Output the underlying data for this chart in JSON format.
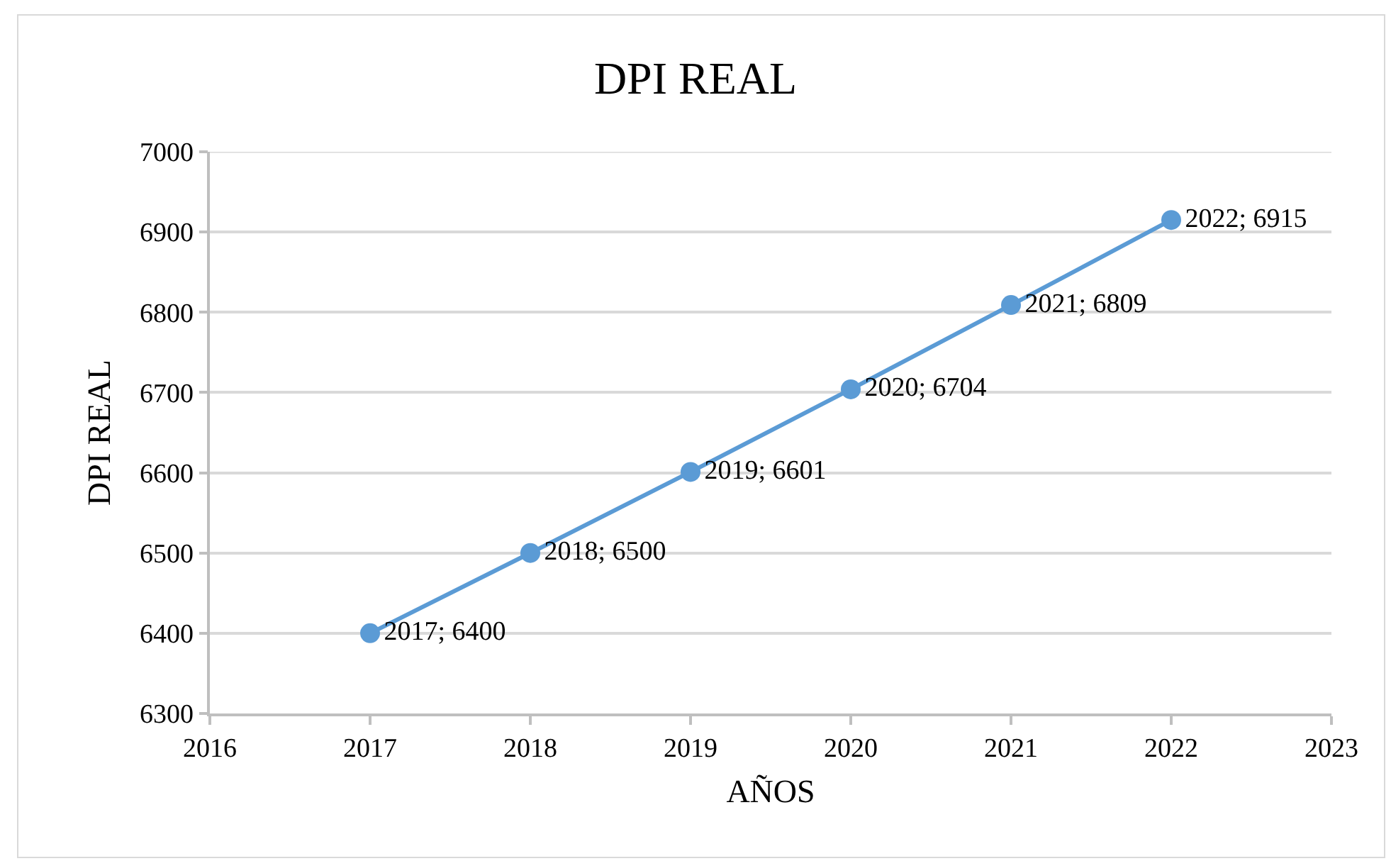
{
  "chart_data": {
    "type": "line",
    "title": "DPI REAL",
    "xlabel": "AÑOS",
    "ylabel": "DPI REAL",
    "x": [
      2017,
      2018,
      2019,
      2020,
      2021,
      2022
    ],
    "values": [
      6400,
      6500,
      6601,
      6704,
      6809,
      6915
    ],
    "value_labels": [
      "2017; 6400",
      "2018; 6500",
      "2019; 6601",
      "2020; 6704",
      "2021; 6809",
      "2022; 6915"
    ],
    "color": "#5b9bd5",
    "marker": "circle",
    "line_style": "solid",
    "grid": "y",
    "xlim": [
      2016,
      2023
    ],
    "xticks": [
      2016,
      2017,
      2018,
      2019,
      2020,
      2021,
      2022,
      2023
    ],
    "ylim": [
      6300,
      7000
    ],
    "yticks": [
      6300,
      6400,
      6500,
      6600,
      6700,
      6800,
      6900,
      7000
    ]
  }
}
